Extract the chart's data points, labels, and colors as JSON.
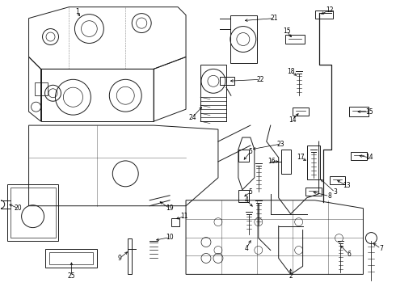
{
  "bg_color": "#ffffff",
  "line_color": "#1a1a1a",
  "text_color": "#000000",
  "fig_width": 4.9,
  "fig_height": 3.6,
  "dpi": 100,
  "lw": 0.7,
  "font_size": 5.5
}
